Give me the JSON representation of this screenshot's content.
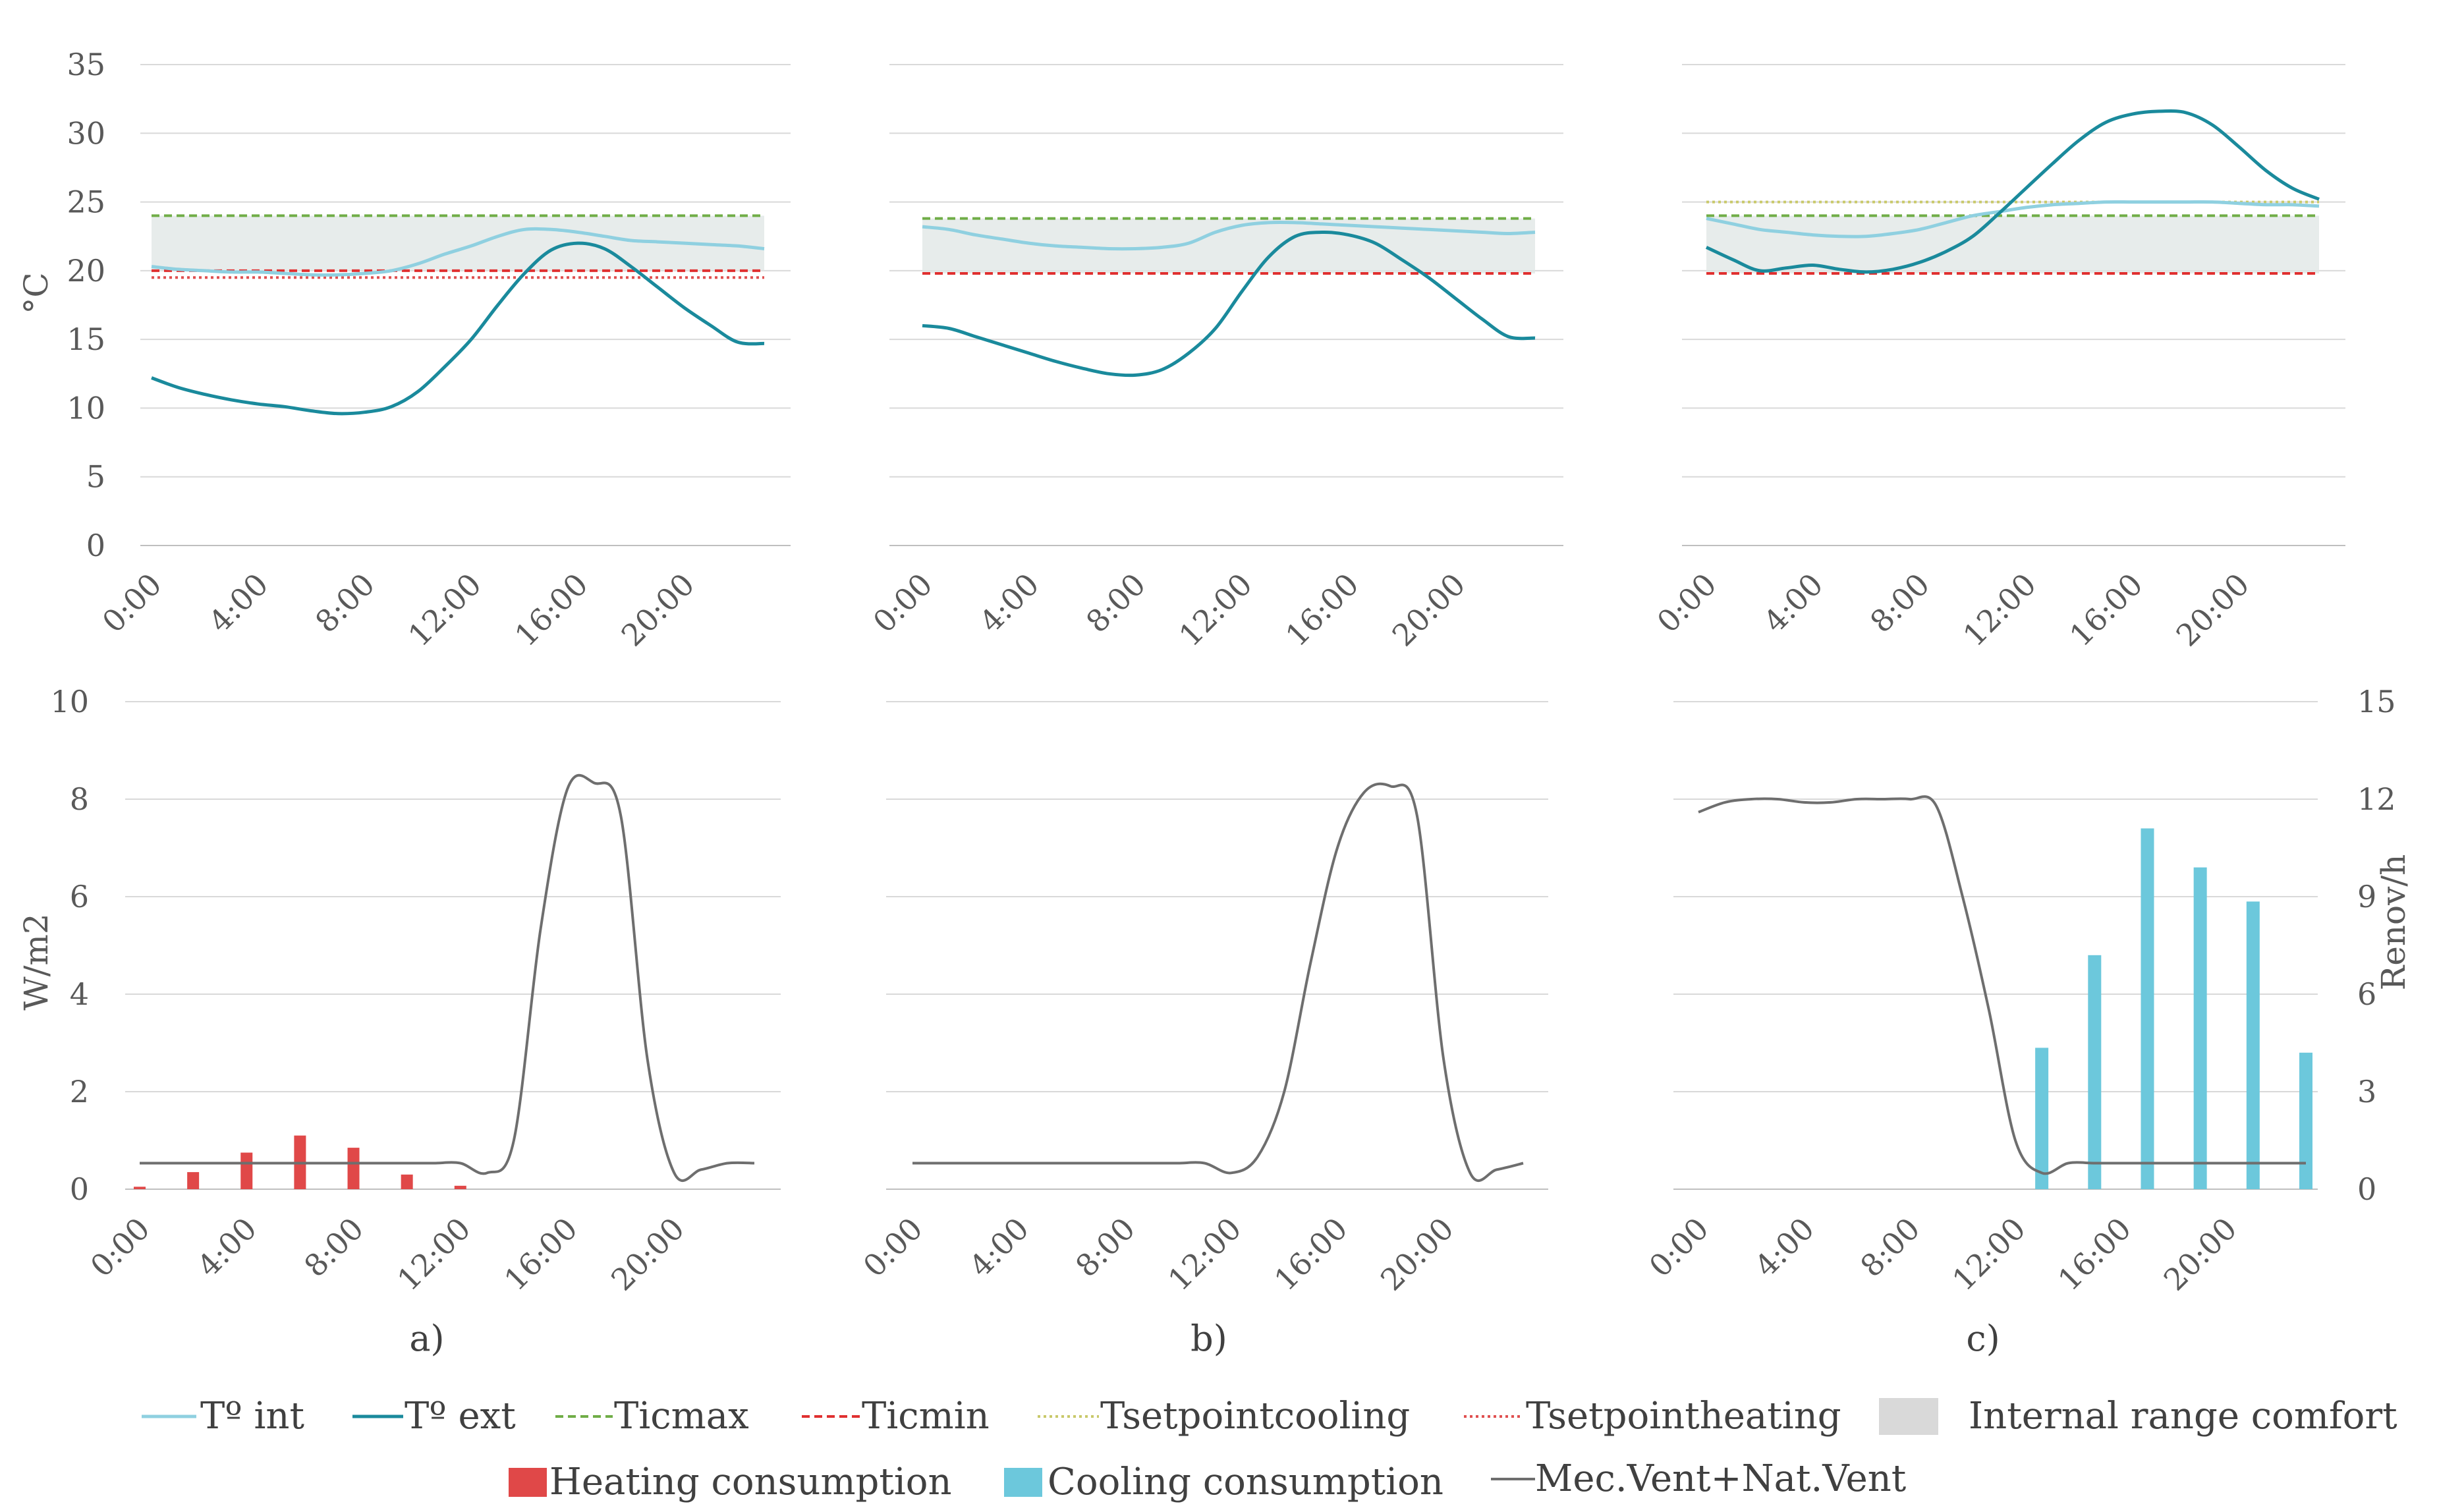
{
  "chart_data": {
    "type": "line+bar",
    "hours": [
      0,
      1,
      2,
      3,
      4,
      5,
      6,
      7,
      8,
      9,
      10,
      11,
      12,
      13,
      14,
      15,
      16,
      17,
      18,
      19,
      20,
      21,
      22,
      23
    ],
    "x_tick_labels": [
      "0:00",
      "4:00",
      "8:00",
      "12:00",
      "16:00",
      "20:00"
    ],
    "top_ylabel": "°C",
    "top_ylim": [
      0,
      35
    ],
    "top_yticks": [
      "0",
      "5",
      "10",
      "15",
      "20",
      "25",
      "30",
      "35"
    ],
    "bottom_ylabel": "W/m2",
    "bottom_ylim": [
      0,
      10
    ],
    "bottom_yticks": [
      "0",
      "2",
      "4",
      "6",
      "8",
      "10"
    ],
    "right_ylabel": "Renov/h",
    "right_ylim": [
      0,
      15
    ],
    "right_yticks": [
      "0",
      "3",
      "6",
      "9",
      "12",
      "15"
    ],
    "colors": {
      "t_int": "#8fd0e0",
      "t_ext": "#1a8a9c",
      "ticmax": "#70ad47",
      "ticmin": "#e03030",
      "tsetpointcooling": "#c9c96a",
      "tsetpointheating": "#e05050",
      "comfort": "#dfe6e4",
      "heating": "#e04848",
      "cooling": "#6cc8dc",
      "vent": "#6e6e6e",
      "grid": "#d9d9d9",
      "axis": "#bfbfbf"
    },
    "panels": [
      {
        "label": "a)",
        "t_int": [
          20.3,
          20.1,
          20,
          19.9,
          19.9,
          19.8,
          19.7,
          19.7,
          19.8,
          20,
          20.5,
          21.2,
          21.8,
          22.5,
          23,
          23,
          22.8,
          22.5,
          22.2,
          22.1,
          22,
          21.9,
          21.8,
          21.6
        ],
        "t_ext": [
          12.2,
          11.5,
          11,
          10.6,
          10.3,
          10.1,
          9.8,
          9.6,
          9.7,
          10.1,
          11.2,
          13,
          15,
          17.5,
          19.8,
          21.5,
          22,
          21.6,
          20.3,
          18.8,
          17.3,
          16,
          14.8,
          14.7
        ],
        "ticmax": 24,
        "ticmin": 20,
        "tsetpointcooling": null,
        "tsetpointheating": 19.5,
        "comfort_range": [
          20,
          24
        ],
        "heating": [
          0.05,
          0,
          0.35,
          0,
          0.75,
          0,
          1.1,
          0,
          0.85,
          0,
          0.3,
          0,
          0.07,
          0,
          0,
          0,
          0,
          0,
          0,
          0,
          0,
          0,
          0,
          0
        ],
        "cooling": [],
        "vent": [
          0.8,
          0.8,
          0.8,
          0.8,
          0.8,
          0.8,
          0.8,
          0.8,
          0.8,
          0.8,
          0.8,
          0.8,
          0.8,
          0.5,
          1.5,
          8,
          12.3,
          12.5,
          11.5,
          4,
          0.5,
          0.6,
          0.8,
          0.8
        ]
      },
      {
        "label": "b)",
        "t_int": [
          23.2,
          23,
          22.6,
          22.3,
          22,
          21.8,
          21.7,
          21.6,
          21.6,
          21.7,
          22,
          22.8,
          23.3,
          23.5,
          23.5,
          23.4,
          23.3,
          23.2,
          23.1,
          23,
          22.9,
          22.8,
          22.7,
          22.8
        ],
        "t_ext": [
          16,
          15.8,
          15.2,
          14.6,
          14,
          13.4,
          12.9,
          12.5,
          12.4,
          12.8,
          14,
          15.8,
          18.5,
          21,
          22.5,
          22.8,
          22.6,
          22,
          20.8,
          19.5,
          18,
          16.5,
          15.2,
          15.1
        ],
        "ticmax": 23.8,
        "ticmin": 19.8,
        "tsetpointcooling": null,
        "tsetpointheating": null,
        "comfort_range": [
          19.8,
          23.8
        ],
        "heating": [],
        "cooling": [],
        "vent": [
          0.8,
          0.8,
          0.8,
          0.8,
          0.8,
          0.8,
          0.8,
          0.8,
          0.8,
          0.8,
          0.8,
          0.8,
          0.5,
          1,
          3,
          7,
          10.5,
          12.2,
          12.4,
          11.5,
          4,
          0.5,
          0.6,
          0.8
        ]
      },
      {
        "label": "c)",
        "t_int": [
          23.8,
          23.4,
          23,
          22.8,
          22.6,
          22.5,
          22.5,
          22.7,
          23,
          23.5,
          24,
          24.3,
          24.6,
          24.8,
          24.9,
          25,
          25,
          25,
          25,
          25,
          24.9,
          24.8,
          24.8,
          24.7
        ],
        "t_ext": [
          21.7,
          20.8,
          20,
          20.2,
          20.4,
          20.1,
          19.9,
          20.1,
          20.6,
          21.4,
          22.5,
          24.2,
          26,
          27.8,
          29.5,
          30.8,
          31.4,
          31.6,
          31.5,
          30.6,
          29,
          27.3,
          26,
          25.2
        ],
        "ticmax": 24,
        "ticmin": 19.8,
        "tsetpointcooling": 25,
        "tsetpointheating": null,
        "comfort_range": [
          19.8,
          24
        ],
        "heating": [],
        "cooling": [
          0,
          0,
          0,
          0,
          0,
          0,
          0,
          0,
          0,
          0,
          0,
          0,
          0,
          2.9,
          0,
          4.8,
          0,
          7.4,
          0,
          6.6,
          0,
          5.9,
          0,
          2.8
        ],
        "vent": [
          11.6,
          11.9,
          12,
          12,
          11.9,
          11.9,
          12,
          12,
          12,
          11.8,
          9,
          5.5,
          1.5,
          0.5,
          0.8,
          0.8,
          0.8,
          0.8,
          0.8,
          0.8,
          0.8,
          0.8,
          0.8,
          0.8
        ]
      }
    ],
    "legend": {
      "t_int": "Tº int",
      "t_ext": "Tº ext",
      "ticmax": "Ticmax",
      "ticmin": "Ticmin",
      "tsetpointcooling": "Tsetpointcooling",
      "tsetpointheating": "Tsetpointheating",
      "comfort": "Internal range comfort",
      "heating": "Heating consumption",
      "cooling": "Cooling consumption",
      "vent": "Mec.Vent+Nat.Vent"
    }
  }
}
